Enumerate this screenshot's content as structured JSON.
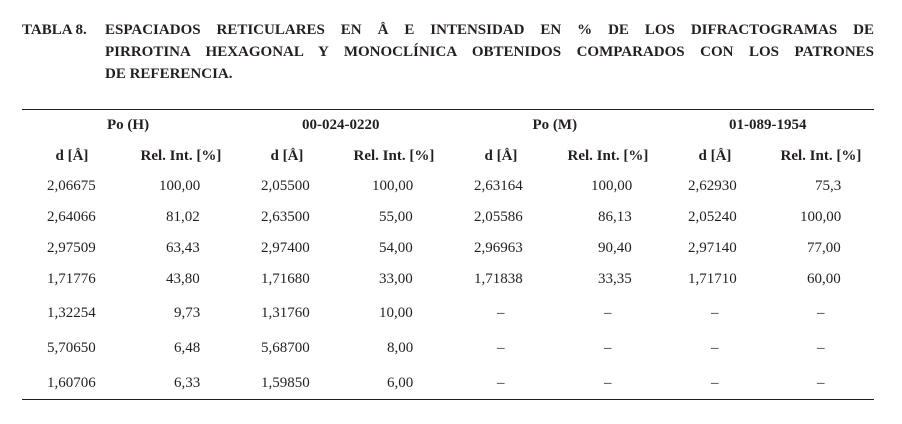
{
  "caption": {
    "label": "TABLA 8.",
    "lines": [
      "ESPACIADOS RETICULARES EN Å E INTENSIDAD EN % DE LOS DIFRACTOGRAMAS DE",
      "PIRROTINA HEXAGONAL Y MONOCLÍNICA OBTENIDOS COMPARADOS CON LOS PATRONES",
      "DE REFERENCIA."
    ]
  },
  "table": {
    "groups": [
      "Po (H)",
      "00-024-0220",
      "Po (M)",
      "01-089-1954"
    ],
    "columns": [
      "d [Å]",
      "Rel. Int. [%]",
      "d [Å]",
      "Rel. Int. [%]",
      "d [Å]",
      "Rel. Int. [%]",
      "d [Å]",
      "Rel. Int. [%]"
    ],
    "rows": [
      [
        "2,06675",
        "100,00",
        "2,05500",
        "100,00",
        "2,63164",
        "100,00",
        "2,62930",
        "75,3"
      ],
      [
        "2,64066",
        "81,02",
        "2,63500",
        "55,00",
        "2,05586",
        "86,13",
        "2,05240",
        "100,00"
      ],
      [
        "2,97509",
        "63,43",
        "2,97400",
        "54,00",
        "2,96963",
        "90,40",
        "2,97140",
        "77,00"
      ],
      [
        "1,71776",
        "43,80",
        "1,71680",
        "33,00",
        "1,71838",
        "33,35",
        "1,71710",
        "60,00"
      ],
      [
        "1,32254",
        "9,73",
        "1,31760",
        "10,00",
        "–",
        "–",
        "–",
        "–"
      ],
      [
        "5,70650",
        "6,48",
        "5,68700",
        "8,00",
        "–",
        "–",
        "–",
        "–"
      ],
      [
        "1,60706",
        "6,33",
        "1,59850",
        "6,00",
        "–",
        "–",
        "–",
        "–"
      ]
    ]
  }
}
